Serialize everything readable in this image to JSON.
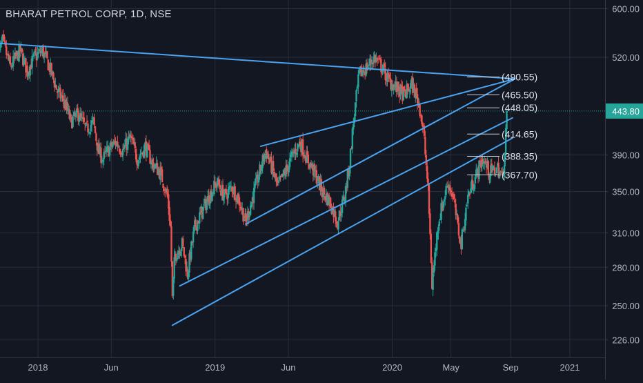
{
  "chart_data": {
    "type": "candlestick",
    "title": "BHARAT PETROL CORP, 1D, NSE",
    "scale": "log",
    "ylim": [
      215,
      610
    ],
    "y_ticks": [
      "600.00",
      "520.00",
      "443.80",
      "390.00",
      "350.00",
      "310.00",
      "280.00",
      "250.00",
      "226.00"
    ],
    "y_tick_values": [
      600,
      520,
      390,
      350,
      310,
      280,
      250,
      226
    ],
    "last_price": {
      "label": "443.80",
      "value": 443.8
    },
    "x_ticks": [
      {
        "label": "2018",
        "date": "2018-01-01"
      },
      {
        "label": "Jun",
        "date": "2018-06-01"
      },
      {
        "label": "2019",
        "date": "2019-01-01"
      },
      {
        "label": "Jun",
        "date": "2019-06-01"
      },
      {
        "label": "2020",
        "date": "2020-01-01"
      },
      {
        "label": "May",
        "date": "2020-05-01"
      },
      {
        "label": "Sep",
        "date": "2020-09-01"
      },
      {
        "label": "2021",
        "date": "2021-01-01"
      }
    ],
    "price_path": [
      [
        "2017-10-10",
        520
      ],
      [
        "2017-10-20",
        545
      ],
      [
        "2017-11-05",
        505
      ],
      [
        "2017-11-25",
        530
      ],
      [
        "2017-12-10",
        500
      ],
      [
        "2017-12-25",
        520
      ],
      [
        "2018-01-10",
        530
      ],
      [
        "2018-01-25",
        505
      ],
      [
        "2018-02-10",
        470
      ],
      [
        "2018-02-25",
        455
      ],
      [
        "2018-03-10",
        430
      ],
      [
        "2018-03-25",
        440
      ],
      [
        "2018-04-10",
        420
      ],
      [
        "2018-04-25",
        430
      ],
      [
        "2018-05-05",
        395
      ],
      [
        "2018-05-15",
        385
      ],
      [
        "2018-05-25",
        395
      ],
      [
        "2018-06-10",
        405
      ],
      [
        "2018-06-25",
        395
      ],
      [
        "2018-07-10",
        410
      ],
      [
        "2018-07-25",
        385
      ],
      [
        "2018-08-10",
        400
      ],
      [
        "2018-08-25",
        380
      ],
      [
        "2018-09-10",
        370
      ],
      [
        "2018-09-25",
        345
      ],
      [
        "2018-10-01",
        315
      ],
      [
        "2018-10-05",
        255
      ],
      [
        "2018-10-10",
        290
      ],
      [
        "2018-10-25",
        300
      ],
      [
        "2018-11-05",
        275
      ],
      [
        "2018-11-20",
        315
      ],
      [
        "2018-12-05",
        330
      ],
      [
        "2018-12-20",
        345
      ],
      [
        "2019-01-05",
        360
      ],
      [
        "2019-01-20",
        345
      ],
      [
        "2019-02-05",
        355
      ],
      [
        "2019-02-20",
        340
      ],
      [
        "2019-03-05",
        320
      ],
      [
        "2019-03-20",
        345
      ],
      [
        "2019-04-05",
        375
      ],
      [
        "2019-04-15",
        395
      ],
      [
        "2019-04-25",
        380
      ],
      [
        "2019-05-10",
        355
      ],
      [
        "2019-05-25",
        370
      ],
      [
        "2019-06-10",
        390
      ],
      [
        "2019-06-25",
        405
      ],
      [
        "2019-07-10",
        385
      ],
      [
        "2019-07-25",
        370
      ],
      [
        "2019-08-10",
        350
      ],
      [
        "2019-08-25",
        340
      ],
      [
        "2019-09-10",
        320
      ],
      [
        "2019-09-25",
        345
      ],
      [
        "2019-10-05",
        380
      ],
      [
        "2019-10-15",
        440
      ],
      [
        "2019-10-25",
        495
      ],
      [
        "2019-11-10",
        505
      ],
      [
        "2019-11-25",
        520
      ],
      [
        "2019-12-10",
        505
      ],
      [
        "2019-12-25",
        485
      ],
      [
        "2020-01-10",
        475
      ],
      [
        "2020-01-25",
        465
      ],
      [
        "2020-02-10",
        480
      ],
      [
        "2020-02-25",
        455
      ],
      [
        "2020-03-05",
        420
      ],
      [
        "2020-03-15",
        350
      ],
      [
        "2020-03-23",
        265
      ],
      [
        "2020-04-05",
        320
      ],
      [
        "2020-04-15",
        340
      ],
      [
        "2020-04-25",
        360
      ],
      [
        "2020-05-05",
        345
      ],
      [
        "2020-05-15",
        315
      ],
      [
        "2020-05-22",
        300
      ],
      [
        "2020-06-05",
        345
      ],
      [
        "2020-06-20",
        365
      ],
      [
        "2020-07-05",
        385
      ],
      [
        "2020-07-20",
        370
      ],
      [
        "2020-08-05",
        375
      ],
      [
        "2020-08-15",
        365
      ],
      [
        "2020-08-20",
        390
      ],
      [
        "2020-08-24",
        443.8
      ]
    ],
    "trend_lines": [
      {
        "from": [
          "2017-10-10",
          542
        ],
        "to": [
          "2020-09-10",
          488
        ]
      },
      {
        "from": [
          "2019-03-05",
          318
        ],
        "to": [
          "2020-09-10",
          488
        ]
      },
      {
        "from": [
          "2019-04-05",
          400
        ],
        "to": [
          "2020-09-10",
          488
        ]
      },
      {
        "from": [
          "2018-10-20",
          265
        ],
        "to": [
          "2020-09-05",
          435
        ]
      },
      {
        "from": [
          "2018-10-05",
          236
        ],
        "to": [
          "2020-09-05",
          410
        ]
      }
    ],
    "levels": [
      {
        "label": "(490.55)",
        "value": 490.55
      },
      {
        "label": "(465.50)",
        "value": 465.5
      },
      {
        "label": "(448.05)",
        "value": 448.05
      },
      {
        "label": "(414.65)",
        "value": 414.65
      },
      {
        "label": "(388.35)",
        "value": 388.35
      },
      {
        "label": "(367.70)",
        "value": 367.7
      }
    ],
    "colors": {
      "background": "#131722",
      "grid": "#2a2e39",
      "up": "#26a69a",
      "down": "#ef5350",
      "trend_line": "#4aa3f0",
      "level_line": "#d1d4dc",
      "axis_text": "#b2b5be",
      "price_tag": "#26a69a"
    }
  }
}
